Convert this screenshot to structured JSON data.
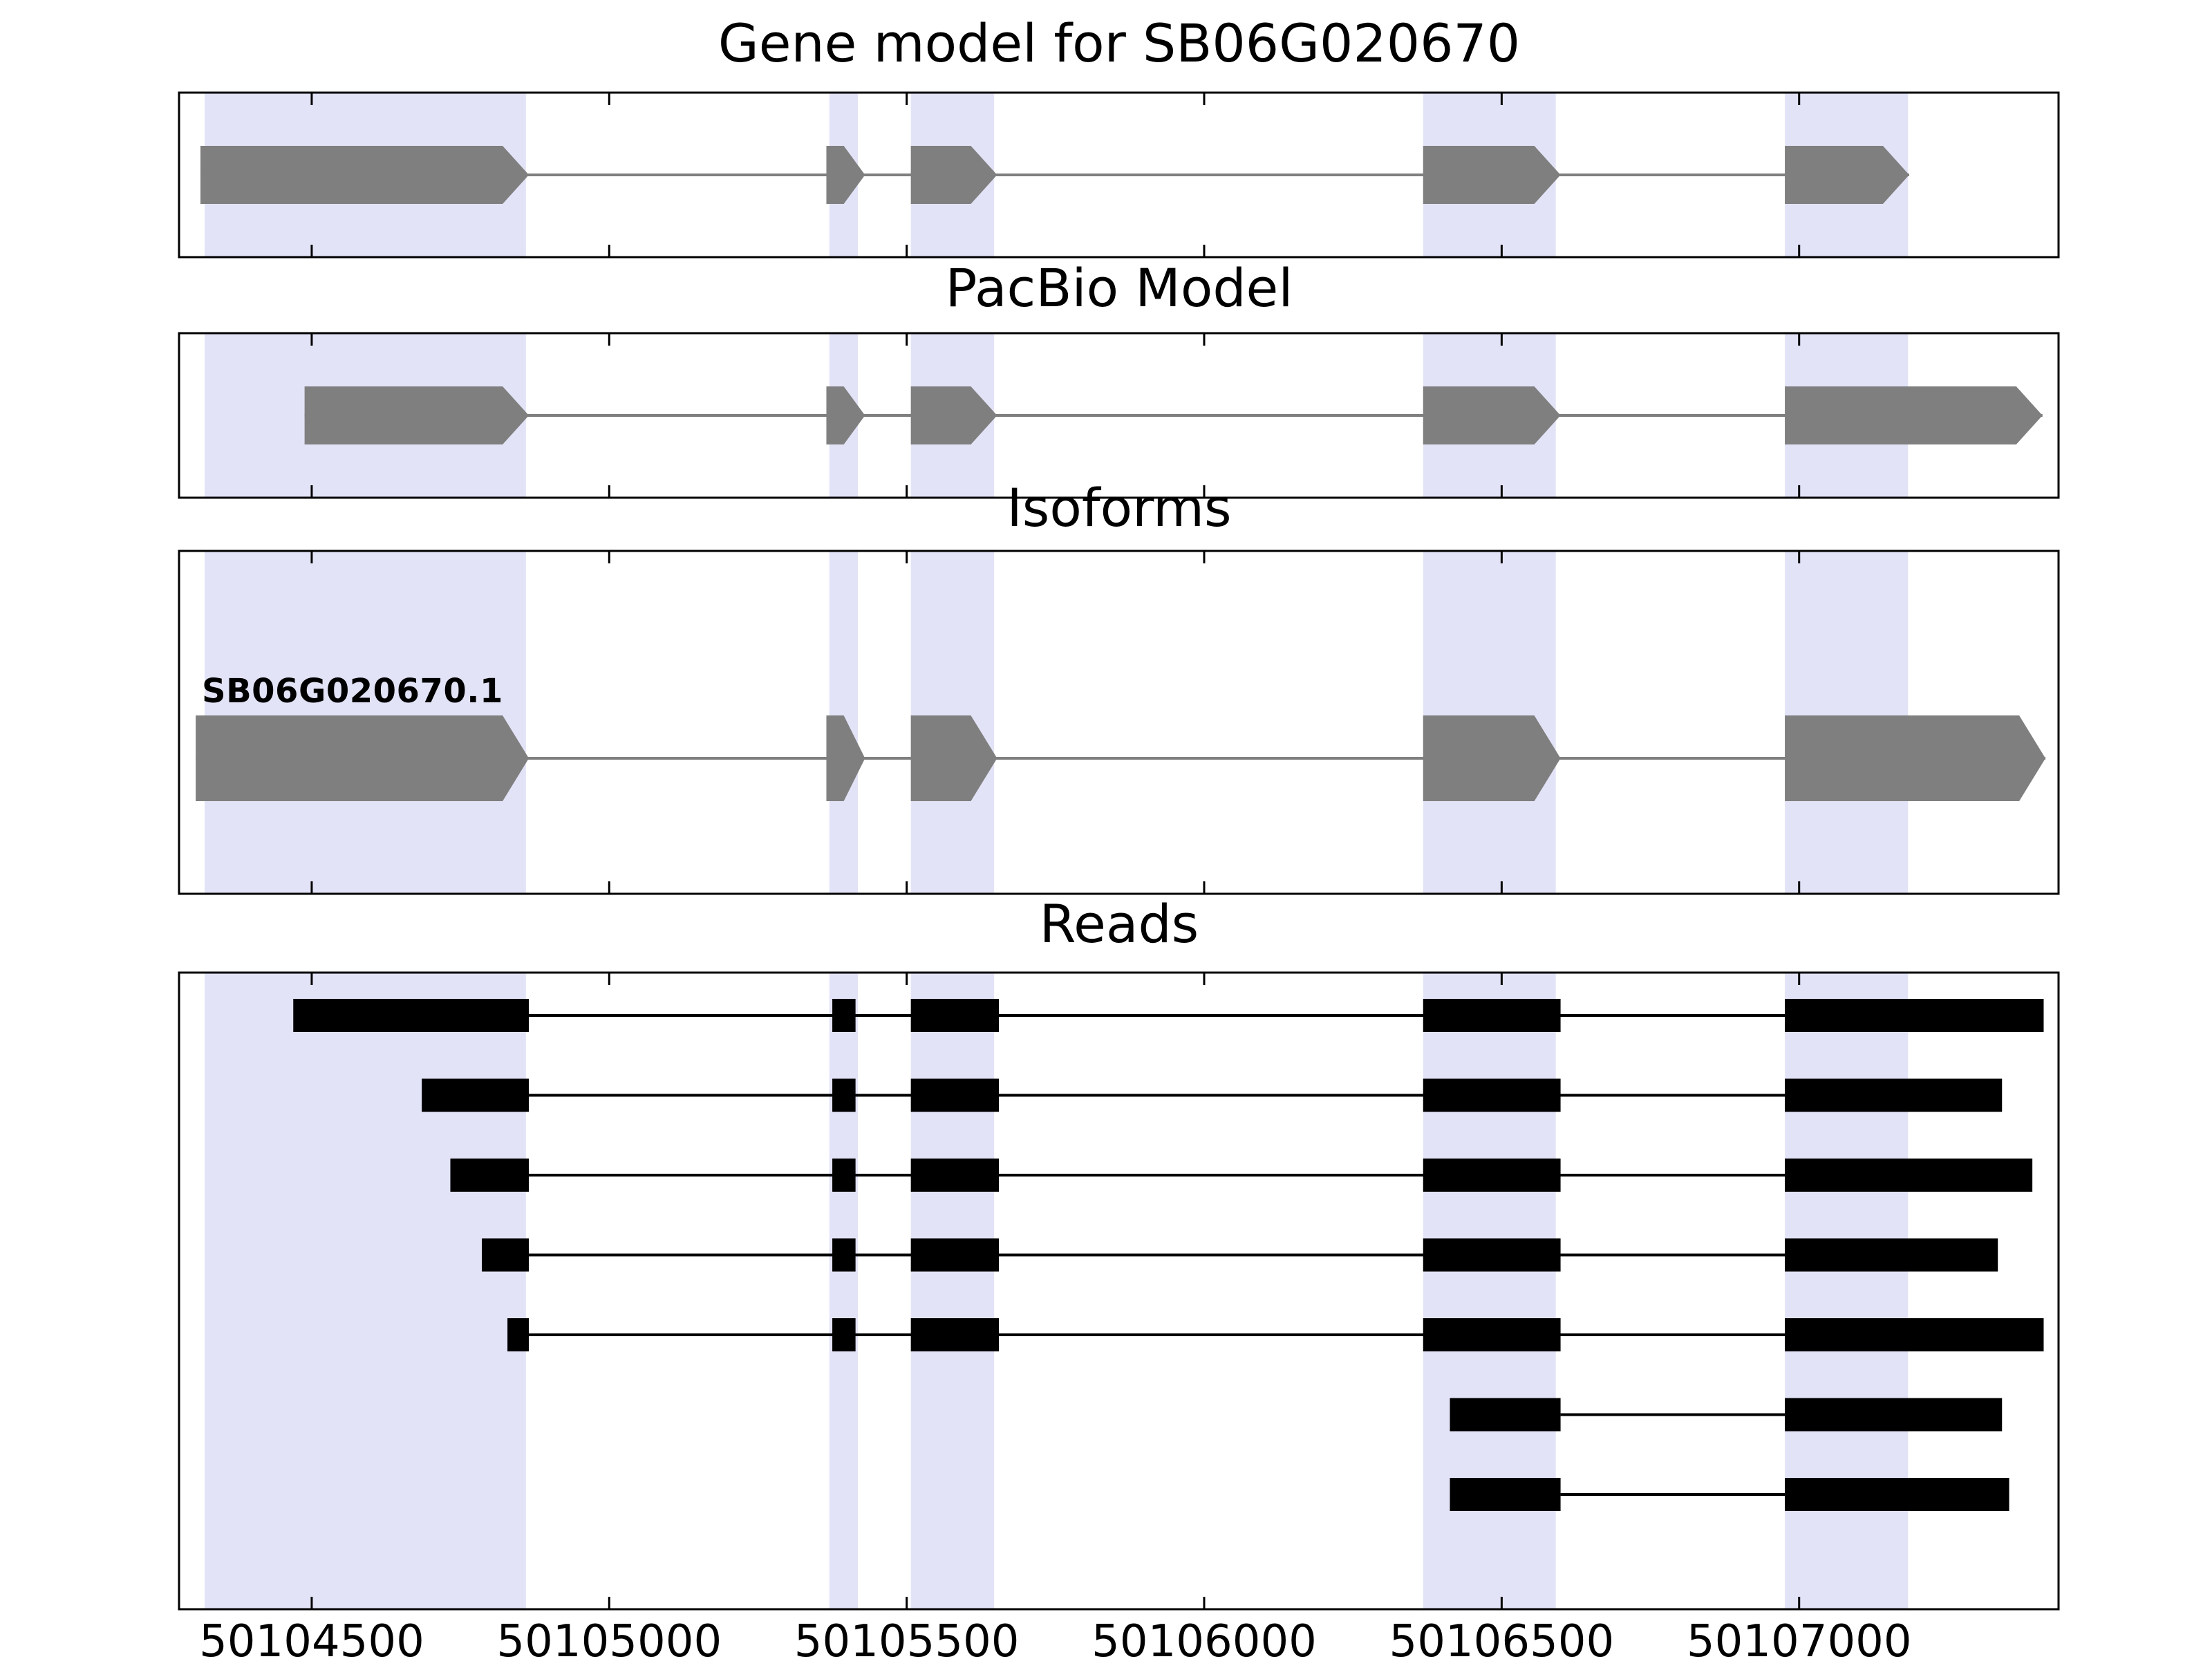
{
  "chart_data": {
    "type": "genome-tracks",
    "figure_title": "Gene model for SB06G020670",
    "x_axis": {
      "min": 50104277,
      "max": 50107436,
      "ticks": [
        50104500,
        50105000,
        50105500,
        50106000,
        50106500,
        50107000
      ],
      "tick_labels": [
        "50104500",
        "50105000",
        "50105500",
        "50106000",
        "50106500",
        "50107000"
      ]
    },
    "highlight_regions": [
      [
        50104320,
        50104860
      ],
      [
        50105370,
        50105418
      ],
      [
        50105507,
        50105647
      ],
      [
        50106368,
        50106591
      ],
      [
        50106976,
        50107183
      ]
    ],
    "colors": {
      "exon": "#7f7f7f",
      "intron_line": "#7f7f7f",
      "read": "#000000",
      "highlight": "#e3e3f8",
      "panel_border": "#000000",
      "background": "#ffffff",
      "text": "#000000"
    },
    "panels": [
      {
        "title": "Gene model for SB06G020670",
        "kind": "gene-model",
        "strand": "+",
        "exons": [
          [
            50104313,
            50104865
          ],
          [
            50105365,
            50105430
          ],
          [
            50105507,
            50105652
          ],
          [
            50106368,
            50106599
          ],
          [
            50106976,
            50107185
          ]
        ]
      },
      {
        "title": "PacBio Model",
        "kind": "gene-model",
        "strand": "+",
        "exons": [
          [
            50104488,
            50104865
          ],
          [
            50105365,
            50105430
          ],
          [
            50105507,
            50105652
          ],
          [
            50106368,
            50106599
          ],
          [
            50106976,
            50107409
          ]
        ]
      },
      {
        "title": "Isoforms",
        "kind": "isoform",
        "isoform_label": "SB06G020670.1",
        "strand": "+",
        "exons": [
          [
            50104305,
            50104865
          ],
          [
            50105365,
            50105430
          ],
          [
            50105507,
            50105652
          ],
          [
            50106368,
            50106599
          ],
          [
            50106976,
            50107414
          ]
        ]
      },
      {
        "title": "Reads",
        "kind": "reads",
        "reads": [
          {
            "blocks": [
              [
                50104469,
                50104865
              ],
              [
                50105375,
                50105414
              ],
              [
                50105507,
                50105655
              ],
              [
                50106368,
                50106599
              ],
              [
                50106976,
                50107411
              ]
            ]
          },
          {
            "blocks": [
              [
                50104685,
                50104865
              ],
              [
                50105375,
                50105414
              ],
              [
                50105507,
                50105655
              ],
              [
                50106368,
                50106599
              ],
              [
                50106976,
                50107341
              ]
            ]
          },
          {
            "blocks": [
              [
                50104733,
                50104865
              ],
              [
                50105375,
                50105414
              ],
              [
                50105507,
                50105655
              ],
              [
                50106368,
                50106599
              ],
              [
                50106976,
                50107392
              ]
            ]
          },
          {
            "blocks": [
              [
                50104786,
                50104865
              ],
              [
                50105375,
                50105414
              ],
              [
                50105507,
                50105655
              ],
              [
                50106368,
                50106599
              ],
              [
                50106976,
                50107334
              ]
            ]
          },
          {
            "blocks": [
              [
                50104829,
                50104865
              ],
              [
                50105375,
                50105414
              ],
              [
                50105507,
                50105655
              ],
              [
                50106368,
                50106599
              ],
              [
                50106976,
                50107411
              ]
            ]
          },
          {
            "blocks": [
              [
                50106413,
                50106599
              ],
              [
                50106976,
                50107341
              ]
            ]
          },
          {
            "blocks": [
              [
                50106413,
                50106599
              ],
              [
                50106976,
                50107353
              ]
            ]
          }
        ]
      }
    ]
  }
}
